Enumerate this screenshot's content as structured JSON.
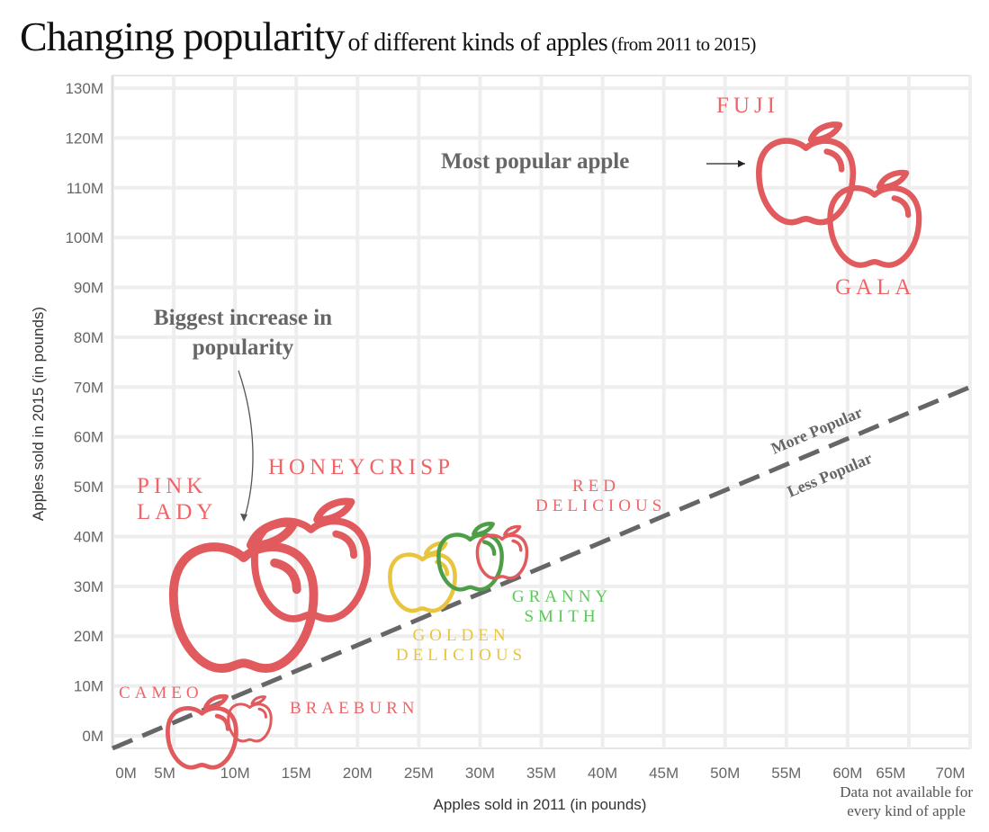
{
  "title": {
    "main": "Changing popularity",
    "sub": "of different kinds of apples",
    "range": "(from 2011 to 2015)"
  },
  "chart_data": {
    "type": "scatter",
    "title": "Changing popularity of different kinds of apples (from 2011 to 2015)",
    "xlabel": "Apples sold in 2011 (in pounds)",
    "ylabel": "Apples sold in 2015 (in pounds)",
    "xlim": [
      0,
      70
    ],
    "ylim": [
      0,
      130
    ],
    "unit": "M",
    "grid": true,
    "x_ticks": [
      "0M",
      "5M",
      "10M",
      "15M",
      "20M",
      "25M",
      "30M",
      "35M",
      "40M",
      "45M",
      "50M",
      "55M",
      "60M",
      "65M",
      "70M"
    ],
    "y_ticks": [
      "0M",
      "10M",
      "20M",
      "30M",
      "40M",
      "50M",
      "60M",
      "70M",
      "80M",
      "90M",
      "100M",
      "110M",
      "120M",
      "130M"
    ],
    "points": [
      {
        "label": "FUJI",
        "x": 56.6,
        "y": 112.5,
        "color": "#e05a5e"
      },
      {
        "label": "GALA",
        "x": 62.2,
        "y": 103.4,
        "color": "#e05a5e"
      },
      {
        "label": "PINK LADY",
        "x": 10.7,
        "y": 27.6,
        "color": "#e05a5e"
      },
      {
        "label": "HONEYCRISP",
        "x": 16.2,
        "y": 34.8,
        "color": "#e05a5e"
      },
      {
        "label": "GOLDEN DELICIOUS",
        "x": 25.3,
        "y": 31.6,
        "color": "#e8c53c"
      },
      {
        "label": "GRANNY SMITH",
        "x": 29.2,
        "y": 35.7,
        "color": "#4d9e47"
      },
      {
        "label": "RED DELICIOUS",
        "x": 31.8,
        "y": 36.6,
        "color": "#e05a5e"
      },
      {
        "label": "CAMEO",
        "x": 7.3,
        "y": 0.5,
        "color": "#e05a5e"
      },
      {
        "label": "BRAEBURN",
        "x": 11.2,
        "y": 3.2,
        "color": "#e05a5e"
      }
    ],
    "reference_line": {
      "type": "y = x",
      "style": "dashed",
      "color": "#666666",
      "above_label": "More Popular",
      "below_label": "Less Popular"
    },
    "annotations": [
      "Most popular apple",
      "Biggest increase in popularity"
    ]
  },
  "label_colors": {
    "red": "#f06468",
    "yellow": "#e8c53c",
    "green": "#5cc85a"
  },
  "note": {
    "line1": "Data not available for",
    "line2": "every kind of apple"
  }
}
